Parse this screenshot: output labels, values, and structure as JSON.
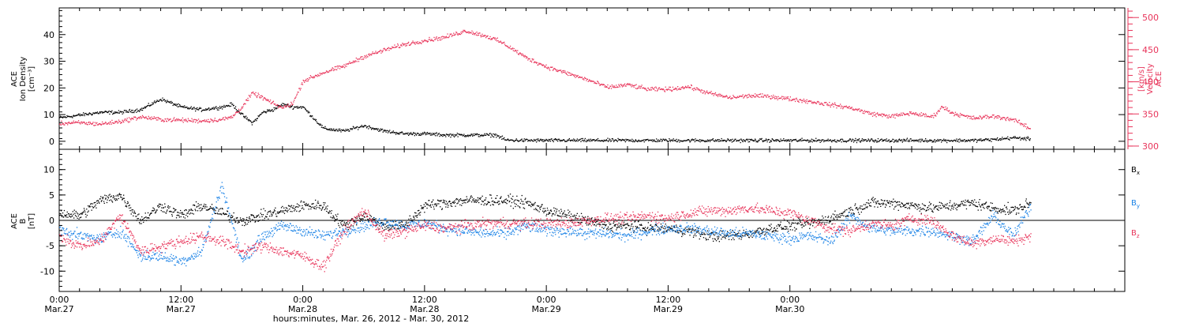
{
  "colors": {
    "black": "#000000",
    "pink": "#e8345a",
    "blue": "#1a82e6"
  },
  "chart_data": [
    {
      "type": "scatter",
      "panel": "top",
      "left_axis": {
        "label_lines": [
          "ACE",
          "Ion Density",
          "[cm⁻³]"
        ],
        "ylim": [
          -3,
          50
        ],
        "ticks": [
          0,
          10,
          20,
          30,
          40
        ]
      },
      "right_axis": {
        "label_lines": [
          "ACE",
          "Velocity",
          "[km/s]"
        ],
        "ylim": [
          295,
          515
        ],
        "ticks": [
          300,
          350,
          400,
          450,
          500
        ]
      },
      "series": [
        {
          "axis": "left",
          "color": "#000000",
          "x_hours": [
            0,
            2,
            4,
            6,
            8,
            10,
            12,
            14,
            16,
            17,
            18,
            19,
            20,
            21,
            22,
            23,
            24,
            26,
            28,
            30,
            31,
            32,
            34,
            36,
            38,
            40,
            42,
            43,
            44,
            46,
            48,
            50,
            52,
            54,
            56,
            58,
            60,
            62,
            64,
            66,
            68,
            70,
            72,
            74,
            76,
            78,
            80,
            82,
            84,
            86,
            88,
            90,
            92,
            94,
            95.7
          ],
          "values": [
            9,
            10,
            11,
            11,
            12,
            16,
            13,
            12,
            13,
            14,
            10,
            7,
            11,
            12,
            14,
            13,
            13,
            5,
            4,
            6,
            5,
            4,
            3,
            3,
            2.5,
            2.5,
            2.5,
            2.5,
            0.6,
            0.5,
            0.5,
            0.5,
            0.5,
            0.5,
            0.5,
            0.5,
            0.5,
            0.5,
            0.5,
            0.5,
            0.5,
            0.5,
            0.5,
            0.5,
            0.5,
            0.5,
            0.5,
            0.5,
            0.5,
            0.5,
            0.5,
            0.5,
            0.8,
            1.5,
            1
          ]
        },
        {
          "axis": "right",
          "color": "#e8345a",
          "x_hours": [
            0,
            2,
            4,
            6,
            8,
            10,
            12,
            14,
            16,
            17,
            18,
            19,
            20,
            21,
            22,
            23,
            24,
            26,
            28,
            30,
            32,
            34,
            36,
            38,
            40,
            42,
            43,
            44,
            46,
            48,
            50,
            52,
            54,
            56,
            58,
            60,
            62,
            64,
            66,
            68,
            70,
            72,
            74,
            76,
            78,
            80,
            82,
            84,
            86,
            87,
            88,
            90,
            92,
            94,
            95.7
          ],
          "values": [
            336,
            337,
            335,
            339,
            346,
            342,
            341,
            340,
            342,
            346,
            362,
            383,
            376,
            367,
            360,
            368,
            402,
            415,
            425,
            440,
            450,
            459,
            465,
            470,
            480,
            472,
            466,
            458,
            438,
            424,
            414,
            404,
            392,
            396,
            389,
            389,
            393,
            383,
            376,
            379,
            378,
            374,
            370,
            365,
            360,
            351,
            347,
            352,
            346,
            362,
            352,
            344,
            347,
            342,
            327
          ]
        }
      ]
    },
    {
      "type": "scatter",
      "panel": "bottom",
      "left_axis": {
        "label_lines": [
          "ACE",
          "B",
          "[nT]"
        ],
        "ylim": [
          -14,
          14
        ],
        "ticks": [
          -10,
          -5,
          0,
          5,
          10
        ]
      },
      "zero_line": true,
      "legend": [
        {
          "name": "B_x",
          "main": "B",
          "sub": "x",
          "color": "#000000"
        },
        {
          "name": "B_y",
          "main": "B",
          "sub": "y",
          "color": "#1a82e6"
        },
        {
          "name": "B_z",
          "main": "B",
          "sub": "z",
          "color": "#e8345a"
        }
      ],
      "series": [
        {
          "name": "B_x",
          "color": "#000000",
          "x_hours": [
            0,
            2,
            4,
            6,
            8,
            10,
            12,
            14,
            16,
            18,
            20,
            22,
            24,
            26,
            28,
            30,
            32,
            34,
            36,
            38,
            40,
            42,
            44,
            46,
            48,
            50,
            52,
            54,
            56,
            58,
            60,
            62,
            64,
            66,
            68,
            70,
            72,
            74,
            76,
            78,
            80,
            82,
            84,
            86,
            88,
            90,
            92,
            94,
            95.7
          ],
          "values": [
            1.5,
            1,
            4,
            5,
            0,
            3,
            1,
            3,
            1.5,
            0,
            1,
            2,
            3,
            3,
            -1,
            1,
            -1,
            -1,
            3,
            3.5,
            4,
            4,
            4,
            3.5,
            2,
            1,
            0,
            -1,
            -1,
            -1.5,
            -1.5,
            -2,
            -3,
            -3,
            -2.5,
            -1.5,
            -1,
            -0.5,
            0.5,
            2,
            3.5,
            3.5,
            3,
            2.5,
            3,
            3.5,
            2.5,
            2,
            3.5
          ]
        },
        {
          "name": "B_y",
          "color": "#1a82e6",
          "x_hours": [
            0,
            2,
            4,
            6,
            8,
            10,
            12,
            14,
            16,
            18,
            20,
            22,
            24,
            26,
            28,
            30,
            32,
            34,
            36,
            38,
            40,
            42,
            44,
            46,
            48,
            50,
            52,
            54,
            56,
            58,
            60,
            62,
            64,
            66,
            68,
            70,
            72,
            74,
            76,
            78,
            80,
            82,
            84,
            86,
            88,
            90,
            92,
            94,
            95.7
          ],
          "values": [
            -1.5,
            -3,
            -3.5,
            -2,
            -7,
            -7,
            -8,
            -6,
            7,
            -8,
            -3,
            -1,
            -2,
            -3,
            -2,
            -1,
            0,
            -1,
            -0.5,
            -1.5,
            -2,
            -2.5,
            -2.5,
            -1,
            -2,
            -2,
            -2.5,
            -2.5,
            -3,
            -2,
            -1.5,
            -1.5,
            -2,
            -2.5,
            -2.5,
            -3,
            -3.5,
            -3,
            -4,
            1,
            -1.5,
            -2,
            -2,
            -2,
            -3,
            -4,
            1,
            -3,
            3
          ]
        },
        {
          "name": "B_z",
          "color": "#e8345a",
          "x_hours": [
            0,
            2,
            4,
            6,
            8,
            10,
            12,
            14,
            16,
            18,
            20,
            22,
            24,
            26,
            28,
            30,
            32,
            34,
            36,
            38,
            40,
            42,
            44,
            46,
            48,
            50,
            52,
            54,
            56,
            58,
            60,
            62,
            64,
            66,
            68,
            70,
            72,
            74,
            76,
            78,
            80,
            82,
            84,
            86,
            88,
            90,
            92,
            94,
            95.7
          ],
          "values": [
            -3,
            -5,
            -4,
            1,
            -6,
            -5,
            -4,
            -3,
            -4,
            -6,
            -5,
            -6,
            -7,
            -9,
            -2,
            2,
            -3,
            -2,
            -1,
            -1.5,
            -1,
            -0.5,
            -0.5,
            -0.5,
            -0.5,
            -0.5,
            0,
            0.5,
            0.5,
            1,
            0.5,
            1.5,
            2,
            2,
            2.5,
            2,
            1.5,
            0,
            -1.5,
            -2,
            -0.5,
            -1,
            0.5,
            0,
            -3,
            -4.5,
            -3.5,
            -4,
            -3
          ]
        }
      ]
    }
  ],
  "x_axis": {
    "xlim_hours": [
      0,
      105
    ],
    "ticks": [
      {
        "hour": 0,
        "time": "0:00",
        "date": "Mar.27"
      },
      {
        "hour": 12,
        "time": "12:00",
        "date": "Mar.27"
      },
      {
        "hour": 24,
        "time": "0:00",
        "date": "Mar.28"
      },
      {
        "hour": 36,
        "time": "12:00",
        "date": "Mar.28"
      },
      {
        "hour": 48,
        "time": "0:00",
        "date": "Mar.29"
      },
      {
        "hour": 60,
        "time": "12:00",
        "date": "Mar.29"
      },
      {
        "hour": 72,
        "time": "0:00",
        "date": "Mar.30"
      }
    ],
    "minor_step_hours": 2,
    "title": "hours:minutes, Mar. 26, 2012 - Mar. 30, 2012"
  }
}
